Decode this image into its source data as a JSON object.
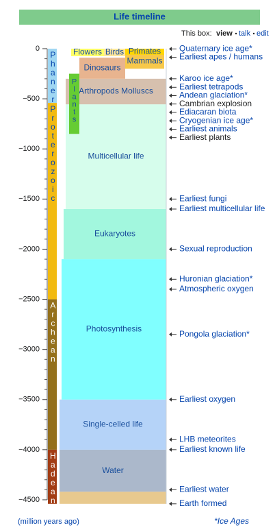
{
  "chart_data": {
    "type": "timeline",
    "title": "Life timeline",
    "nav": {
      "label": "This box:",
      "links": [
        "view",
        "talk",
        "edit"
      ]
    },
    "ylim": [
      0,
      -4500
    ],
    "yticks": [
      0,
      {
        "value": -500,
        "label": "−500"
      },
      {
        "value": -1000,
        "label": "−1000"
      },
      {
        "value": -1500,
        "label": "−1500"
      },
      {
        "value": -2000,
        "label": "−2000"
      },
      {
        "value": -2500,
        "label": "−2500"
      },
      {
        "value": -3000,
        "label": "−3000"
      },
      {
        "value": -3500,
        "label": "−3500"
      },
      {
        "value": -4000,
        "label": "−4000"
      },
      {
        "value": -4500,
        "label": "−4500"
      }
    ],
    "minor_yticks": [
      -100,
      -200,
      -300,
      -400,
      -600,
      -700,
      -800,
      -900,
      -1100,
      -1200,
      -1300,
      -1400,
      -1600,
      -1700,
      -1800,
      -1900,
      -2100,
      -2200,
      -2300,
      -2400,
      -2600,
      -2700,
      -2800,
      -2900,
      -3100,
      -3200,
      -3300,
      -3400,
      -3600,
      -3700,
      -3800,
      -3900,
      -4100,
      -4200,
      -4300,
      -4400
    ],
    "eons": [
      {
        "name": "Phanerozoic",
        "start": 0,
        "end": -541,
        "color": "#9fd6f2",
        "text_color": "#0645ad"
      },
      {
        "name": "Proterozoic",
        "start": -541,
        "end": -2500,
        "color": "#f2ba11",
        "text_color": "#0645ad"
      },
      {
        "name": "Archean",
        "start": -2500,
        "end": -4000,
        "color": "#94701c",
        "text_color": "#ffffff"
      },
      {
        "name": "Hadean",
        "start": -4000,
        "end": -4540,
        "color": "#a23c14",
        "text_color": "#ffffff"
      }
    ],
    "regions": [
      {
        "name": "Water",
        "start": -4000,
        "end": -4420,
        "color": "#abb8cb"
      },
      {
        "name": null,
        "start": -4420,
        "end": -4540,
        "color": "#e8c98e"
      },
      {
        "name": "Single-celled life",
        "start": -3500,
        "end": -4000,
        "color": "#b5d3f8"
      },
      {
        "name": "Photosynthesis",
        "start": -2100,
        "end": -3500,
        "color": "#80ffff"
      },
      {
        "name": "Eukaryotes",
        "start": -1600,
        "end": -2100,
        "color": "#a2f7de"
      },
      {
        "name": "Multicellular life",
        "start": -555,
        "end": -1600,
        "color": "#d6fdec"
      },
      {
        "name": "Arthropods Molluscs",
        "start": -300,
        "end": -555,
        "color": "#d6c0ae"
      },
      {
        "name": "Dinosaurs",
        "start": -90,
        "end": -300,
        "color": "#e8b48f"
      },
      {
        "name": "Mammals",
        "start": -50,
        "end": -200,
        "color": "#f7c84a"
      },
      {
        "name": "Flowers",
        "start": 0,
        "end": -75,
        "color": "#ffff66"
      },
      {
        "name": "Birds",
        "start": 0,
        "end": -75,
        "color": "#ffe69b"
      },
      {
        "name": "Primates",
        "start": 0,
        "end": -60,
        "color": "#ffd700"
      },
      {
        "name": "Plants",
        "start": -250,
        "end": -850,
        "color": "#66cc33"
      }
    ],
    "events": [
      {
        "year": -2.58,
        "label": "Quaternary ice age*",
        "link": true
      },
      {
        "year": -6,
        "label": "Earliest apes / humans",
        "link": true
      },
      {
        "year": -300,
        "label": "Karoo ice age*",
        "link": true
      },
      {
        "year": -385,
        "label": "Earliest tetrapods",
        "link": true
      },
      {
        "year": -450,
        "label": "Andean glaciation*",
        "link": true
      },
      {
        "year": -538,
        "label": "Cambrian explosion",
        "link": false
      },
      {
        "year": -635,
        "label": "Ediacaran biota",
        "link": true
      },
      {
        "year": -720,
        "label": "Cryogenian ice age*",
        "link": true
      },
      {
        "year": -800,
        "label": "Earliest animals",
        "link": true
      },
      {
        "year": -850,
        "label": "Earliest plants",
        "link": false
      },
      {
        "year": -1500,
        "label": "Earliest fungi",
        "link": true
      },
      {
        "year": -1600,
        "label": "Earliest multicellular life",
        "link": true
      },
      {
        "year": -2000,
        "label": "Sexual reproduction",
        "link": true
      },
      {
        "year": -2300,
        "label": "Huronian glaciation*",
        "link": true
      },
      {
        "year": -2400,
        "label": "Atmospheric oxygen",
        "link": true
      },
      {
        "year": -2850,
        "label": "Pongola glaciation*",
        "link": true
      },
      {
        "year": -3500,
        "label": "Earliest oxygen",
        "link": true
      },
      {
        "year": -3900,
        "label": "LHB meteorites",
        "link": true
      },
      {
        "year": -4000,
        "label": "Earliest known life",
        "link": true
      },
      {
        "year": -4400,
        "label": "Earliest water",
        "link": true
      },
      {
        "year": -4540,
        "label": "Earth formed",
        "link": true
      }
    ],
    "footer": {
      "unit": "(million years ago)",
      "note": "*Ice Ages"
    }
  }
}
